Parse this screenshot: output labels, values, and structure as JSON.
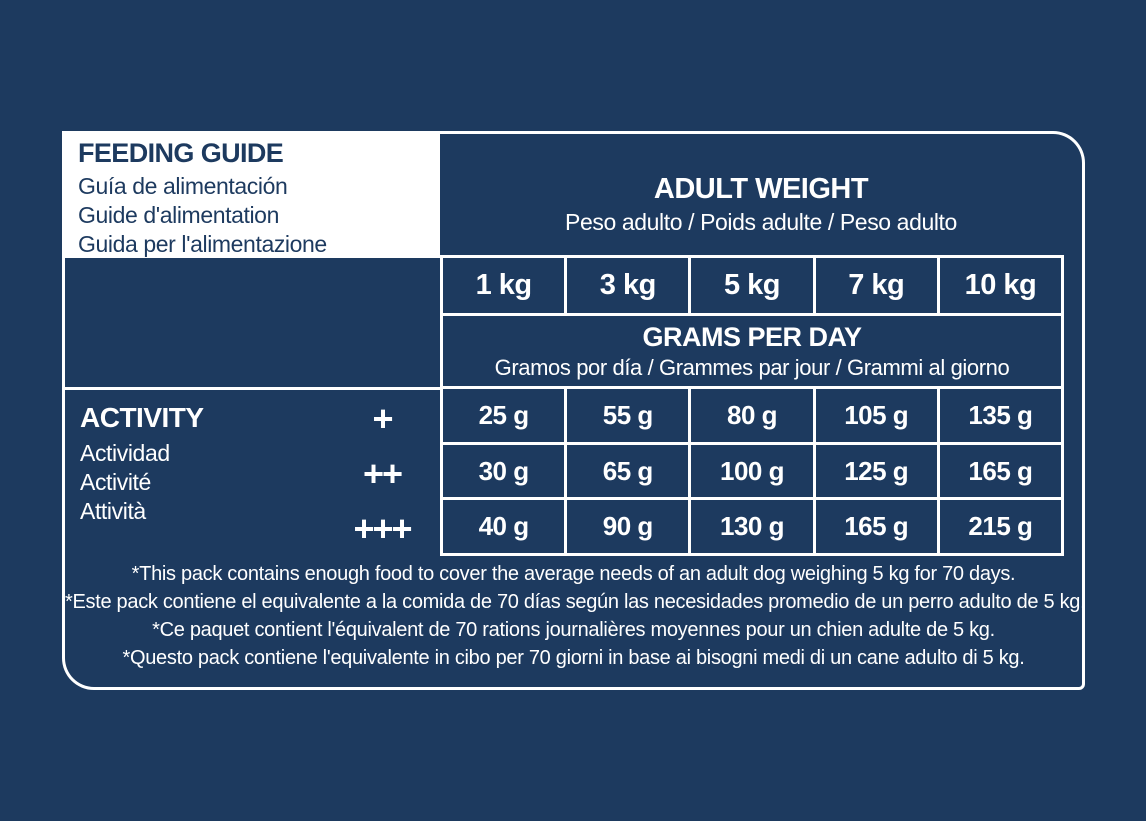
{
  "colors": {
    "navy": "#1d3a5f",
    "white": "#ffffff"
  },
  "feeding_guide": {
    "title": "FEEDING GUIDE",
    "subtitles": [
      "Guía de alimentación",
      "Guide d'alimentation",
      "Guida per l'alimentazione"
    ]
  },
  "adult_weight": {
    "title": "ADULT WEIGHT",
    "subtitle": "Peso adulto / Poids adulte / Peso adulto"
  },
  "weights": [
    "1 kg",
    "3 kg",
    "5 kg",
    "7 kg",
    "10 kg"
  ],
  "grams_per_day": {
    "title": "GRAMS PER DAY",
    "subtitle": "Gramos por día / Grammes par jour / Grammi al giorno"
  },
  "activity": {
    "title": "ACTIVITY",
    "subtitles": [
      "Actividad",
      "Activité",
      "Attività"
    ]
  },
  "rows": [
    {
      "level": "+",
      "values": [
        "25 g",
        "55 g",
        "80 g",
        "105 g",
        "135 g"
      ]
    },
    {
      "level": "++",
      "values": [
        "30 g",
        "65 g",
        "100 g",
        "125 g",
        "165 g"
      ]
    },
    {
      "level": "+++",
      "values": [
        "40 g",
        "90 g",
        "130 g",
        "165 g",
        "215 g"
      ]
    }
  ],
  "footnotes": [
    "*This pack contains enough food to cover the average needs of an adult dog weighing 5 kg for 70 days.",
    "*Este pack contiene el equivalente a la comida de 70 días según las necesidades promedio de un perro adulto de 5 kg.",
    "*Ce paquet contient l'équivalent de 70 rations journalières moyennes pour un chien adulte de 5 kg.",
    "*Questo pack contiene l'equivalente in cibo per 70 giorni in base ai bisogni medi di un cane adulto di 5 kg."
  ]
}
